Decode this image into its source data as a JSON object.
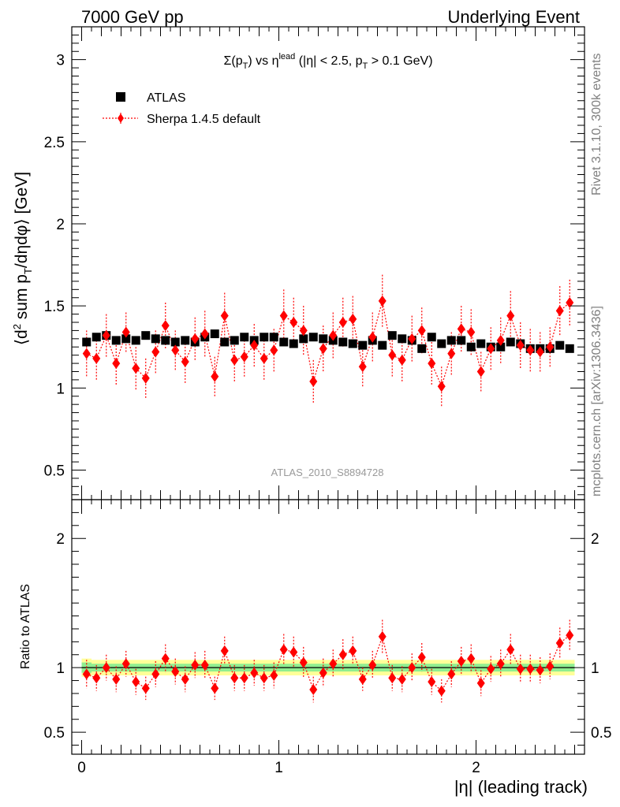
{
  "header": {
    "left": "7000 GeV pp",
    "right": "Underlying Event"
  },
  "side": {
    "rivet": "Rivet 3.1.10,  300k events",
    "mcplots": "mcplots.cern.ch [arXiv:1306.3436]"
  },
  "chart_data": {
    "type": "scatter",
    "title": "Σ(p_T) vs η^lead (|η| < 2.5, p_T > 0.1 GeV)",
    "title_parts": {
      "sigma": "Σ(p",
      "sub_t": "T",
      "vs": ") vs η",
      "sup_lead": "lead",
      "cut_a": " (|η| < 2.5, p",
      "sub_t2": "T",
      "cut_b": " > 0.1 GeV)"
    },
    "ylabel": "⟨d² sum p_T/dηdφ⟩ [GeV]",
    "ylabel_parts": {
      "a": "⟨d",
      "sup2": "2",
      "b": " sum p",
      "subT": "T",
      "c": "/dηdφ⟩ [GeV]"
    },
    "ratio_ylabel": "Ratio to ATLAS",
    "xlabel": "|η| (leading track)",
    "watermark": "ATLAS_2010_S8894728",
    "xlim": [
      -0.05,
      2.55
    ],
    "ylim": [
      0.32,
      3.2
    ],
    "ratio_ylim": [
      0.33,
      2.3
    ],
    "x_ticks": [
      0,
      1,
      2
    ],
    "x_tick_labels": [
      "0",
      "1",
      "2"
    ],
    "y_ticks": [
      0.5,
      1,
      1.5,
      2,
      2.5,
      3
    ],
    "y_tick_labels": [
      "0.5",
      "1",
      "1.5",
      "2",
      "2.5",
      "3"
    ],
    "ratio_ticks": [
      0.5,
      1,
      2
    ],
    "ratio_tick_labels": [
      "0.5",
      "1",
      "2"
    ],
    "legend": {
      "atlas": "ATLAS",
      "sherpa": "Sherpa 1.4.5 default"
    },
    "colors": {
      "atlas": "#000000",
      "sherpa": "#ff0000",
      "band_inner": "#90ee90",
      "band_outer": "#ffff99",
      "watermark": "#999999",
      "side_text": "#808080"
    },
    "x": [
      0.025,
      0.075,
      0.125,
      0.175,
      0.225,
      0.275,
      0.325,
      0.375,
      0.425,
      0.475,
      0.525,
      0.575,
      0.625,
      0.675,
      0.725,
      0.775,
      0.825,
      0.875,
      0.925,
      0.975,
      1.025,
      1.075,
      1.125,
      1.175,
      1.225,
      1.275,
      1.325,
      1.375,
      1.425,
      1.475,
      1.525,
      1.575,
      1.625,
      1.675,
      1.725,
      1.775,
      1.825,
      1.875,
      1.925,
      1.975,
      2.025,
      2.075,
      2.125,
      2.175,
      2.225,
      2.275,
      2.325,
      2.375,
      2.425,
      2.475
    ],
    "series": [
      {
        "name": "ATLAS",
        "values": [
          1.28,
          1.31,
          1.32,
          1.29,
          1.3,
          1.29,
          1.32,
          1.3,
          1.29,
          1.28,
          1.29,
          1.28,
          1.31,
          1.33,
          1.28,
          1.29,
          1.31,
          1.29,
          1.31,
          1.31,
          1.28,
          1.27,
          1.3,
          1.31,
          1.3,
          1.29,
          1.28,
          1.27,
          1.26,
          1.29,
          1.26,
          1.32,
          1.3,
          1.29,
          1.24,
          1.31,
          1.27,
          1.29,
          1.29,
          1.25,
          1.27,
          1.25,
          1.25,
          1.28,
          1.27,
          1.24,
          1.24,
          1.24,
          1.26,
          1.24
        ]
      },
      {
        "name": "Sherpa 1.4.5 default",
        "values": [
          1.21,
          1.18,
          1.32,
          1.15,
          1.34,
          1.12,
          1.06,
          1.22,
          1.38,
          1.23,
          1.16,
          1.3,
          1.33,
          1.07,
          1.44,
          1.17,
          1.19,
          1.26,
          1.18,
          1.23,
          1.44,
          1.4,
          1.35,
          1.04,
          1.24,
          1.32,
          1.4,
          1.42,
          1.13,
          1.31,
          1.53,
          1.2,
          1.17,
          1.3,
          1.35,
          1.15,
          1.01,
          1.21,
          1.36,
          1.34,
          1.1,
          1.24,
          1.29,
          1.44,
          1.26,
          1.23,
          1.22,
          1.25,
          1.47,
          1.52
        ],
        "errors": [
          0.14,
          0.13,
          0.13,
          0.13,
          0.12,
          0.13,
          0.12,
          0.13,
          0.14,
          0.12,
          0.13,
          0.13,
          0.14,
          0.12,
          0.14,
          0.13,
          0.12,
          0.13,
          0.13,
          0.13,
          0.16,
          0.15,
          0.15,
          0.13,
          0.14,
          0.14,
          0.15,
          0.14,
          0.12,
          0.15,
          0.16,
          0.13,
          0.13,
          0.14,
          0.14,
          0.13,
          0.12,
          0.13,
          0.14,
          0.14,
          0.12,
          0.13,
          0.14,
          0.15,
          0.14,
          0.13,
          0.12,
          0.12,
          0.15,
          0.14
        ]
      }
    ],
    "ratio": [
      0.95,
      0.92,
      1.0,
      0.91,
      1.03,
      0.89,
      0.84,
      0.95,
      1.07,
      0.97,
      0.91,
      1.02,
      1.02,
      0.84,
      1.13,
      0.92,
      0.92,
      0.96,
      0.92,
      0.94,
      1.14,
      1.12,
      1.04,
      0.83,
      0.96,
      1.03,
      1.1,
      1.13,
      0.91,
      1.02,
      1.24,
      0.92,
      0.91,
      1.0,
      1.08,
      0.89,
      0.82,
      0.95,
      1.05,
      1.07,
      0.88,
      0.99,
      1.03,
      1.14,
      0.99,
      0.99,
      0.98,
      1.01,
      1.19,
      1.25
    ],
    "ratio_errors": [
      0.11,
      0.1,
      0.1,
      0.1,
      0.1,
      0.1,
      0.09,
      0.1,
      0.11,
      0.1,
      0.1,
      0.1,
      0.11,
      0.09,
      0.11,
      0.1,
      0.1,
      0.1,
      0.1,
      0.1,
      0.12,
      0.12,
      0.12,
      0.1,
      0.11,
      0.11,
      0.12,
      0.11,
      0.09,
      0.11,
      0.13,
      0.1,
      0.1,
      0.11,
      0.11,
      0.1,
      0.09,
      0.1,
      0.11,
      0.11,
      0.1,
      0.1,
      0.11,
      0.12,
      0.11,
      0.11,
      0.1,
      0.1,
      0.12,
      0.12
    ],
    "band_inner": [
      0.04,
      0.03,
      0.03,
      0.03,
      0.03,
      0.03,
      0.03,
      0.03,
      0.03,
      0.03,
      0.03,
      0.03,
      0.03,
      0.03,
      0.03,
      0.03,
      0.03,
      0.03,
      0.03,
      0.03,
      0.03,
      0.03,
      0.03,
      0.03,
      0.03,
      0.03,
      0.03,
      0.03,
      0.03,
      0.03,
      0.03,
      0.03,
      0.03,
      0.03,
      0.03,
      0.03,
      0.03,
      0.03,
      0.03,
      0.03,
      0.03,
      0.03,
      0.03,
      0.03,
      0.03,
      0.03,
      0.03,
      0.03,
      0.03,
      0.03
    ],
    "band_outer": [
      0.07,
      0.06,
      0.06,
      0.06,
      0.06,
      0.06,
      0.06,
      0.06,
      0.06,
      0.06,
      0.06,
      0.06,
      0.06,
      0.06,
      0.06,
      0.06,
      0.06,
      0.06,
      0.06,
      0.06,
      0.06,
      0.06,
      0.06,
      0.06,
      0.06,
      0.06,
      0.06,
      0.06,
      0.06,
      0.06,
      0.06,
      0.06,
      0.06,
      0.06,
      0.06,
      0.06,
      0.06,
      0.06,
      0.06,
      0.06,
      0.06,
      0.06,
      0.06,
      0.06,
      0.06,
      0.06,
      0.06,
      0.06,
      0.06,
      0.06
    ]
  }
}
